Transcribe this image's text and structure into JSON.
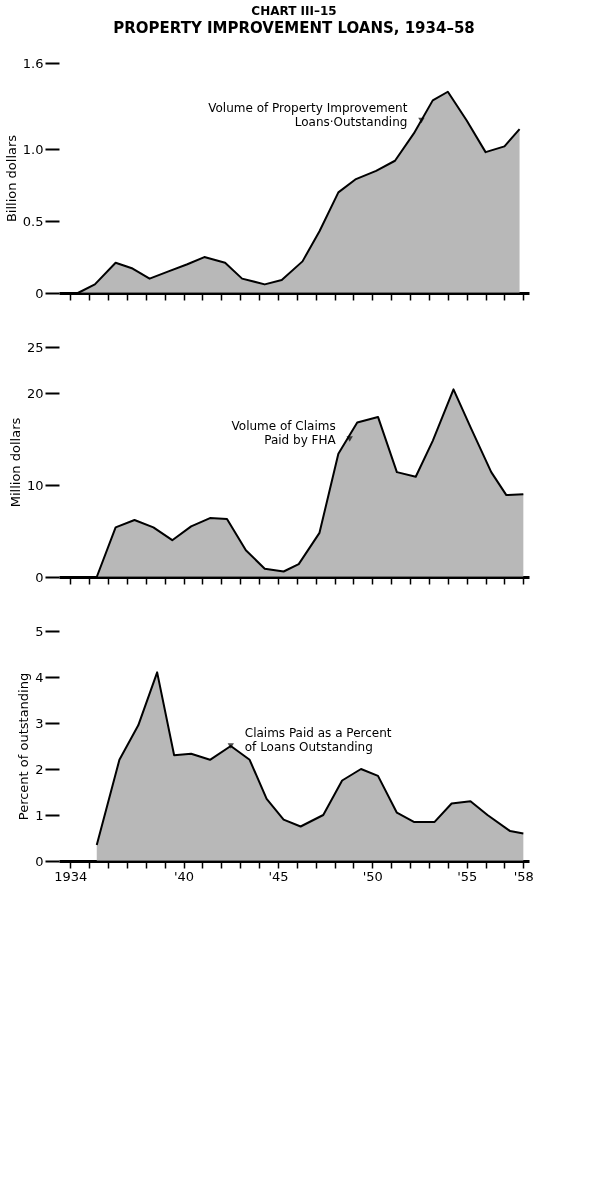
{
  "chart_data": [
    {
      "type": "area",
      "title": "CHART III–15",
      "subtitle": "PROPERTY IMPROVEMENT LOANS, 1934–58",
      "ylabel": "Billion dollars",
      "color": "#9a9a9a",
      "x": [
        1934.4,
        1935.3,
        1936.4,
        1937.3,
        1938.2,
        1939.2,
        1940.2,
        1941.1,
        1942.2,
        1943.1,
        1944.3,
        1945.2,
        1946.3,
        1947.2,
        1948.2,
        1949.1,
        1950.2,
        1951.2,
        1952.2,
        1953.2,
        1954.0,
        1955.0,
        1956.0,
        1957.0,
        1957.8
      ],
      "values": [
        0,
        0.06,
        0.21,
        0.17,
        0.1,
        0.15,
        0.2,
        0.25,
        0.21,
        0.1,
        0.06,
        0.09,
        0.22,
        0.43,
        0.7,
        0.79,
        0.85,
        0.92,
        1.11,
        1.34,
        1.4,
        1.2,
        0.98,
        1.02,
        1.14
      ],
      "xlim": [
        1933.4,
        1958.3
      ],
      "ylim": [
        0,
        1.6
      ],
      "yticks": [
        0,
        0.5,
        {
          "value": 1,
          "label": "1.0"
        },
        1.6
      ],
      "xticks": [
        {
          "value": 1934,
          "label": null
        },
        {
          "value": 1935,
          "label": null
        },
        {
          "value": 1936,
          "label": null
        },
        {
          "value": 1937,
          "label": null
        },
        {
          "value": 1938,
          "label": null
        },
        {
          "value": 1939,
          "label": null
        },
        {
          "value": 1940,
          "label": null
        },
        {
          "value": 1941,
          "label": null
        },
        {
          "value": 1942,
          "label": null
        },
        {
          "value": 1943,
          "label": null
        },
        {
          "value": 1944,
          "label": null
        },
        {
          "value": 1945,
          "label": null
        },
        {
          "value": 1946,
          "label": null
        },
        {
          "value": 1947,
          "label": null
        },
        {
          "value": 1948,
          "label": null
        },
        {
          "value": 1949,
          "label": null
        },
        {
          "value": 1950,
          "label": null
        },
        {
          "value": 1951,
          "label": null
        },
        {
          "value": 1952,
          "label": null
        },
        {
          "value": 1953,
          "label": null
        },
        {
          "value": 1954,
          "label": null
        },
        {
          "value": 1955,
          "label": null
        },
        {
          "value": 1956,
          "label": null
        },
        {
          "value": 1957,
          "label": null
        },
        {
          "value": 1958,
          "label": null
        }
      ],
      "tick_labels": "y",
      "grid": false,
      "annotations": [
        {
          "text": "Volume of Property Improvement\nLoans·Outstanding",
          "x": 1952.6,
          "y": 1.2
        }
      ]
    },
    {
      "type": "area",
      "ylabel": "Million dollars",
      "color": "#9a9a9a",
      "x": [
        1935.4,
        1936.4,
        1937.4,
        1938.4,
        1939.4,
        1940.4,
        1941.4,
        1942.3,
        1943.3,
        1944.3,
        1945.3,
        1946.1,
        1947.2,
        1948.2,
        1949.2,
        1950.3,
        1951.3,
        1952.3,
        1953.2,
        1954.3,
        1955.2,
        1956.3,
        1957.1,
        1958.0
      ],
      "values": [
        0,
        5.4,
        6.2,
        5.4,
        4.0,
        5.5,
        6.4,
        6.3,
        2.9,
        0.9,
        0.6,
        1.4,
        4.8,
        13.4,
        16.8,
        17.4,
        11.4,
        10.9,
        14.8,
        20.4,
        16.3,
        11.4,
        8.9,
        9.0
      ],
      "xlim": [
        1933.4,
        1958.3
      ],
      "ylim": [
        0,
        25
      ],
      "yticks": [
        0,
        10,
        20,
        25
      ],
      "xticks": [
        {
          "value": 1934,
          "label": null
        },
        {
          "value": 1935,
          "label": null
        },
        {
          "value": 1936,
          "label": null
        },
        {
          "value": 1937,
          "label": null
        },
        {
          "value": 1938,
          "label": null
        },
        {
          "value": 1939,
          "label": null
        },
        {
          "value": 1940,
          "label": null
        },
        {
          "value": 1941,
          "label": null
        },
        {
          "value": 1942,
          "label": null
        },
        {
          "value": 1943,
          "label": null
        },
        {
          "value": 1944,
          "label": null
        },
        {
          "value": 1945,
          "label": null
        },
        {
          "value": 1946,
          "label": null
        },
        {
          "value": 1947,
          "label": null
        },
        {
          "value": 1948,
          "label": null
        },
        {
          "value": 1949,
          "label": null
        },
        {
          "value": 1950,
          "label": null
        },
        {
          "value": 1951,
          "label": null
        },
        {
          "value": 1952,
          "label": null
        },
        {
          "value": 1953,
          "label": null
        },
        {
          "value": 1954,
          "label": null
        },
        {
          "value": 1955,
          "label": null
        },
        {
          "value": 1956,
          "label": null
        },
        {
          "value": 1957,
          "label": null
        },
        {
          "value": 1958,
          "label": null
        }
      ],
      "tick_labels": "y",
      "grid": false,
      "annotations": [
        {
          "text": "Volume of Claims\nPaid by FHA",
          "x": 1948.8,
          "y": 15
        }
      ]
    },
    {
      "type": "area",
      "ylabel": "Percent of outstanding",
      "color": "#9a9a9a",
      "x": [
        1935.4,
        1936.6,
        1937.6,
        1938.6,
        1939.5,
        1940.4,
        1941.4,
        1942.5,
        1943.5,
        1944.4,
        1945.3,
        1946.2,
        1947.4,
        1948.4,
        1949.4,
        1950.3,
        1951.3,
        1952.2,
        1953.3,
        1954.2,
        1955.2,
        1956.1,
        1957.3,
        1958.0
      ],
      "values": [
        0.35,
        2.2,
        2.95,
        4.1,
        2.3,
        2.33,
        2.2,
        2.5,
        2.2,
        1.35,
        0.9,
        0.75,
        1.0,
        1.75,
        2.0,
        1.85,
        1.05,
        0.85,
        0.85,
        1.25,
        1.3,
        1.0,
        0.65,
        0.6
      ],
      "xlim": [
        1933.4,
        1958.3
      ],
      "ylim": [
        0,
        5
      ],
      "yticks": [
        0,
        1,
        2,
        3,
        4,
        5
      ],
      "xticks": [
        {
          "value": 1934,
          "label": "1934"
        },
        {
          "value": 1935,
          "label": null
        },
        {
          "value": 1936,
          "label": null
        },
        {
          "value": 1937,
          "label": null
        },
        {
          "value": 1938,
          "label": null
        },
        {
          "value": 1939,
          "label": null
        },
        {
          "value": 1940,
          "label": "'40"
        },
        {
          "value": 1941,
          "label": null
        },
        {
          "value": 1942,
          "label": null
        },
        {
          "value": 1943,
          "label": null
        },
        {
          "value": 1944,
          "label": null
        },
        {
          "value": 1945,
          "label": "'45"
        },
        {
          "value": 1946,
          "label": null
        },
        {
          "value": 1947,
          "label": null
        },
        {
          "value": 1948,
          "label": null
        },
        {
          "value": 1949,
          "label": null
        },
        {
          "value": 1950,
          "label": "'50"
        },
        {
          "value": 1951,
          "label": null
        },
        {
          "value": 1952,
          "label": null
        },
        {
          "value": 1953,
          "label": null
        },
        {
          "value": 1954,
          "label": null
        },
        {
          "value": 1955,
          "label": "'55"
        },
        {
          "value": 1956,
          "label": null
        },
        {
          "value": 1957,
          "label": null
        },
        {
          "value": 1958,
          "label": "'58"
        }
      ],
      "grid": false,
      "annotations": [
        {
          "text": "Claims Paid as a Percent\nof Loans Outstanding",
          "x": 1942.5,
          "y": 2.5
        }
      ]
    }
  ]
}
